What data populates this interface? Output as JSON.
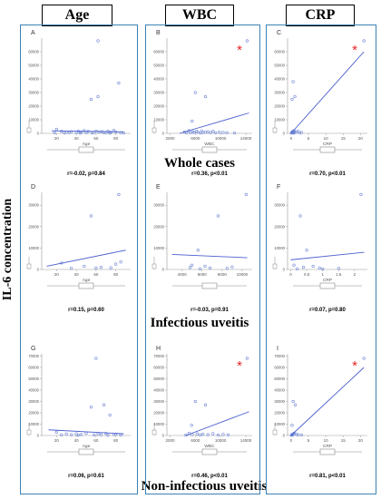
{
  "columns": [
    "Age",
    "WBC",
    "CRP"
  ],
  "row_labels": [
    "Whole cases",
    "Infectious uveitis",
    "Non-infectious uveitis"
  ],
  "y_axis_label": "IL-6 concentration",
  "significance_marker": "*",
  "colors": {
    "panel_border": "#3b82b4",
    "axis": "#9a9a9a",
    "point": "#6f86d4",
    "line": "#4a5fd0",
    "star": "#e32626",
    "gridless": true
  },
  "chart_data": [
    {
      "type": "scatter",
      "label": "A",
      "xlabel": "Age",
      "ylabel": "",
      "xticks": [
        20,
        40,
        60,
        80
      ],
      "yticks": [
        0,
        10000,
        20000,
        30000,
        40000,
        50000,
        60000
      ],
      "xlim": [
        5,
        95
      ],
      "ylim": [
        0,
        70000
      ],
      "points": [
        [
          62,
          68000
        ],
        [
          55,
          25000
        ],
        [
          62,
          27000
        ],
        [
          83,
          37000
        ],
        [
          20,
          3000
        ],
        [
          25,
          1500
        ],
        [
          30,
          800
        ],
        [
          35,
          1200
        ],
        [
          40,
          600
        ],
        [
          42,
          1500
        ],
        [
          45,
          900
        ],
        [
          48,
          2000
        ],
        [
          50,
          500
        ],
        [
          52,
          1400
        ],
        [
          58,
          700
        ],
        [
          60,
          1800
        ],
        [
          63,
          900
        ],
        [
          66,
          1300
        ],
        [
          70,
          600
        ],
        [
          72,
          1500
        ],
        [
          75,
          800
        ],
        [
          78,
          2200
        ],
        [
          80,
          1000
        ],
        [
          85,
          500
        ],
        [
          18,
          400
        ],
        [
          28,
          300
        ],
        [
          33,
          600
        ],
        [
          44,
          200
        ],
        [
          56,
          300
        ],
        [
          68,
          400
        ],
        [
          74,
          200
        ],
        [
          88,
          300
        ]
      ],
      "fit": [
        [
          15,
          1900
        ],
        [
          88,
          1100
        ]
      ],
      "stat": "r=-0.02, p=0.84",
      "significant": false
    },
    {
      "type": "scatter",
      "label": "B",
      "xlabel": "WBC",
      "ylabel": "",
      "xticks": [
        2000,
        6000,
        10000,
        14000
      ],
      "yticks": [
        0,
        10000,
        20000,
        30000,
        40000,
        50000,
        60000
      ],
      "xlim": [
        1500,
        15000
      ],
      "ylim": [
        0,
        70000
      ],
      "points": [
        [
          14200,
          68000
        ],
        [
          6000,
          30000
        ],
        [
          5500,
          9000
        ],
        [
          7600,
          27000
        ],
        [
          5000,
          2000
        ],
        [
          5200,
          500
        ],
        [
          5600,
          1200
        ],
        [
          5800,
          700
        ],
        [
          6200,
          1500
        ],
        [
          6400,
          800
        ],
        [
          6800,
          300
        ],
        [
          7000,
          1800
        ],
        [
          7200,
          600
        ],
        [
          7600,
          900
        ],
        [
          8000,
          1200
        ],
        [
          8400,
          500
        ],
        [
          8800,
          1600
        ],
        [
          9200,
          400
        ],
        [
          9800,
          900
        ],
        [
          10400,
          700
        ],
        [
          11000,
          500
        ],
        [
          4600,
          400
        ],
        [
          4300,
          1000
        ],
        [
          12200,
          300
        ]
      ],
      "fit": [
        [
          3500,
          0
        ],
        [
          14500,
          15000
        ]
      ],
      "stat": "r=0.36, p<0.01",
      "significant": true
    },
    {
      "type": "scatter",
      "label": "C",
      "xlabel": "CRP",
      "ylabel": "",
      "xticks": [
        0,
        5,
        10,
        15,
        20
      ],
      "yticks": [
        0,
        10000,
        20000,
        30000,
        40000,
        50000,
        60000
      ],
      "xlim": [
        -1,
        22
      ],
      "ylim": [
        0,
        70000
      ],
      "points": [
        [
          21,
          68000
        ],
        [
          0.6,
          38000
        ],
        [
          0.3,
          25000
        ],
        [
          1.1,
          27000
        ],
        [
          0.9,
          2000
        ],
        [
          0.2,
          800
        ],
        [
          0.4,
          1200
        ],
        [
          0.5,
          300
        ],
        [
          1.5,
          900
        ],
        [
          2,
          1500
        ],
        [
          2.5,
          500
        ],
        [
          0.7,
          600
        ],
        [
          0.8,
          200
        ],
        [
          1,
          1000
        ],
        [
          0.1,
          400
        ],
        [
          3,
          600
        ],
        [
          0.5,
          1400
        ]
      ],
      "fit": [
        [
          0,
          0
        ],
        [
          21,
          60000
        ]
      ],
      "stat": "r=0.70, p<0.01",
      "significant": true
    },
    {
      "type": "scatter",
      "label": "D",
      "xlabel": "Age",
      "ylabel": "",
      "xticks": [
        20,
        40,
        60,
        80
      ],
      "yticks": [
        0,
        10000,
        20000,
        30000
      ],
      "xlim": [
        5,
        95
      ],
      "ylim": [
        0,
        36000
      ],
      "points": [
        [
          55,
          25000
        ],
        [
          83,
          35000
        ],
        [
          25,
          3000
        ],
        [
          48,
          1500
        ],
        [
          65,
          1000
        ],
        [
          75,
          800
        ],
        [
          80,
          2500
        ],
        [
          35,
          500
        ],
        [
          85,
          3500
        ],
        [
          60,
          700
        ]
      ],
      "fit": [
        [
          10,
          1500
        ],
        [
          90,
          9000
        ]
      ],
      "stat": "r=0.15, p=0.60",
      "significant": false
    },
    {
      "type": "scatter",
      "label": "E",
      "xlabel": "",
      "ylabel": "",
      "xticks": [
        4000,
        6000,
        8000,
        10000
      ],
      "yticks": [
        0,
        10000,
        20000,
        30000
      ],
      "xlim": [
        2500,
        11000
      ],
      "ylim": [
        0,
        36000
      ],
      "points": [
        [
          7600,
          25000
        ],
        [
          5600,
          9000
        ],
        [
          10400,
          35000
        ],
        [
          5000,
          2000
        ],
        [
          6300,
          1500
        ],
        [
          6800,
          700
        ],
        [
          8500,
          500
        ],
        [
          9000,
          1200
        ],
        [
          4800,
          900
        ],
        [
          5800,
          300
        ]
      ],
      "fit": [
        [
          3000,
          7000
        ],
        [
          10500,
          5500
        ]
      ],
      "stat": "r=-0.03, p=0.91",
      "significant": false
    },
    {
      "type": "scatter",
      "label": "F",
      "xlabel": "CRP",
      "ylabel": "",
      "xticks": [
        0,
        0.5,
        1,
        1.5,
        2
      ],
      "yticks": [
        0,
        10000,
        20000,
        30000
      ],
      "xlim": [
        -0.1,
        2.4
      ],
      "ylim": [
        0,
        36000
      ],
      "points": [
        [
          0.3,
          25000
        ],
        [
          0.5,
          9000
        ],
        [
          0.1,
          2000
        ],
        [
          0.4,
          1000
        ],
        [
          0.9,
          700
        ],
        [
          1.5,
          500
        ],
        [
          0.2,
          300
        ],
        [
          2.2,
          35000
        ],
        [
          0.7,
          1500
        ],
        [
          1,
          200
        ]
      ],
      "fit": [
        [
          0,
          4500
        ],
        [
          2.3,
          8000
        ]
      ],
      "stat": "r=0.07, p=0.80",
      "significant": false
    },
    {
      "type": "scatter",
      "label": "G",
      "xlabel": "Age",
      "ylabel": "",
      "xticks": [
        20,
        40,
        60,
        80
      ],
      "yticks": [
        0,
        10000,
        20000,
        30000,
        40000,
        50000,
        60000,
        70000
      ],
      "xlim": [
        5,
        95
      ],
      "ylim": [
        0,
        72000
      ],
      "points": [
        [
          60,
          68000
        ],
        [
          55,
          25000
        ],
        [
          68,
          27000
        ],
        [
          74,
          18000
        ],
        [
          20,
          3000
        ],
        [
          30,
          1200
        ],
        [
          35,
          600
        ],
        [
          40,
          1500
        ],
        [
          45,
          800
        ],
        [
          50,
          2000
        ],
        [
          58,
          500
        ],
        [
          62,
          1400
        ],
        [
          65,
          700
        ],
        [
          70,
          1800
        ],
        [
          78,
          900
        ],
        [
          80,
          1200
        ],
        [
          85,
          400
        ],
        [
          25,
          500
        ],
        [
          42,
          300
        ],
        [
          72,
          200
        ]
      ],
      "fit": [
        [
          12,
          5000
        ],
        [
          88,
          1500
        ]
      ],
      "stat": "r=0.06, p=0.61",
      "significant": false
    },
    {
      "type": "scatter",
      "label": "H",
      "xlabel": "WBC",
      "ylabel": "",
      "xticks": [
        2000,
        6000,
        10000,
        14000
      ],
      "yticks": [
        0,
        10000,
        20000,
        30000,
        40000,
        50000,
        60000,
        70000
      ],
      "xlim": [
        1500,
        15000
      ],
      "ylim": [
        0,
        72000
      ],
      "points": [
        [
          14200,
          68000
        ],
        [
          6000,
          30000
        ],
        [
          7600,
          27000
        ],
        [
          5400,
          9000
        ],
        [
          5000,
          2000
        ],
        [
          5500,
          800
        ],
        [
          6300,
          1500
        ],
        [
          6800,
          500
        ],
        [
          7200,
          1200
        ],
        [
          8000,
          700
        ],
        [
          8800,
          1600
        ],
        [
          9600,
          400
        ],
        [
          10400,
          900
        ],
        [
          4500,
          300
        ],
        [
          11200,
          600
        ]
      ],
      "fit": [
        [
          4500,
          0
        ],
        [
          14500,
          21000
        ]
      ],
      "stat": "r=0.46, p<0.01",
      "significant": true
    },
    {
      "type": "scatter",
      "label": "I",
      "xlabel": "CRP",
      "ylabel": "",
      "xticks": [
        0,
        5,
        10,
        15,
        20
      ],
      "yticks": [
        0,
        10000,
        20000,
        30000,
        40000,
        50000,
        60000,
        70000
      ],
      "xlim": [
        -1,
        22
      ],
      "ylim": [
        0,
        72000
      ],
      "points": [
        [
          21,
          68000
        ],
        [
          0.6,
          30000
        ],
        [
          1.2,
          27000
        ],
        [
          0.3,
          9000
        ],
        [
          0.9,
          2000
        ],
        [
          0.2,
          800
        ],
        [
          0.5,
          400
        ],
        [
          1.5,
          1200
        ],
        [
          2,
          600
        ],
        [
          0.7,
          1500
        ],
        [
          3,
          500
        ],
        [
          0.1,
          300
        ]
      ],
      "fit": [
        [
          0,
          0
        ],
        [
          21,
          60000
        ]
      ],
      "stat": "r=0.81, p<0.01",
      "significant": true
    }
  ]
}
